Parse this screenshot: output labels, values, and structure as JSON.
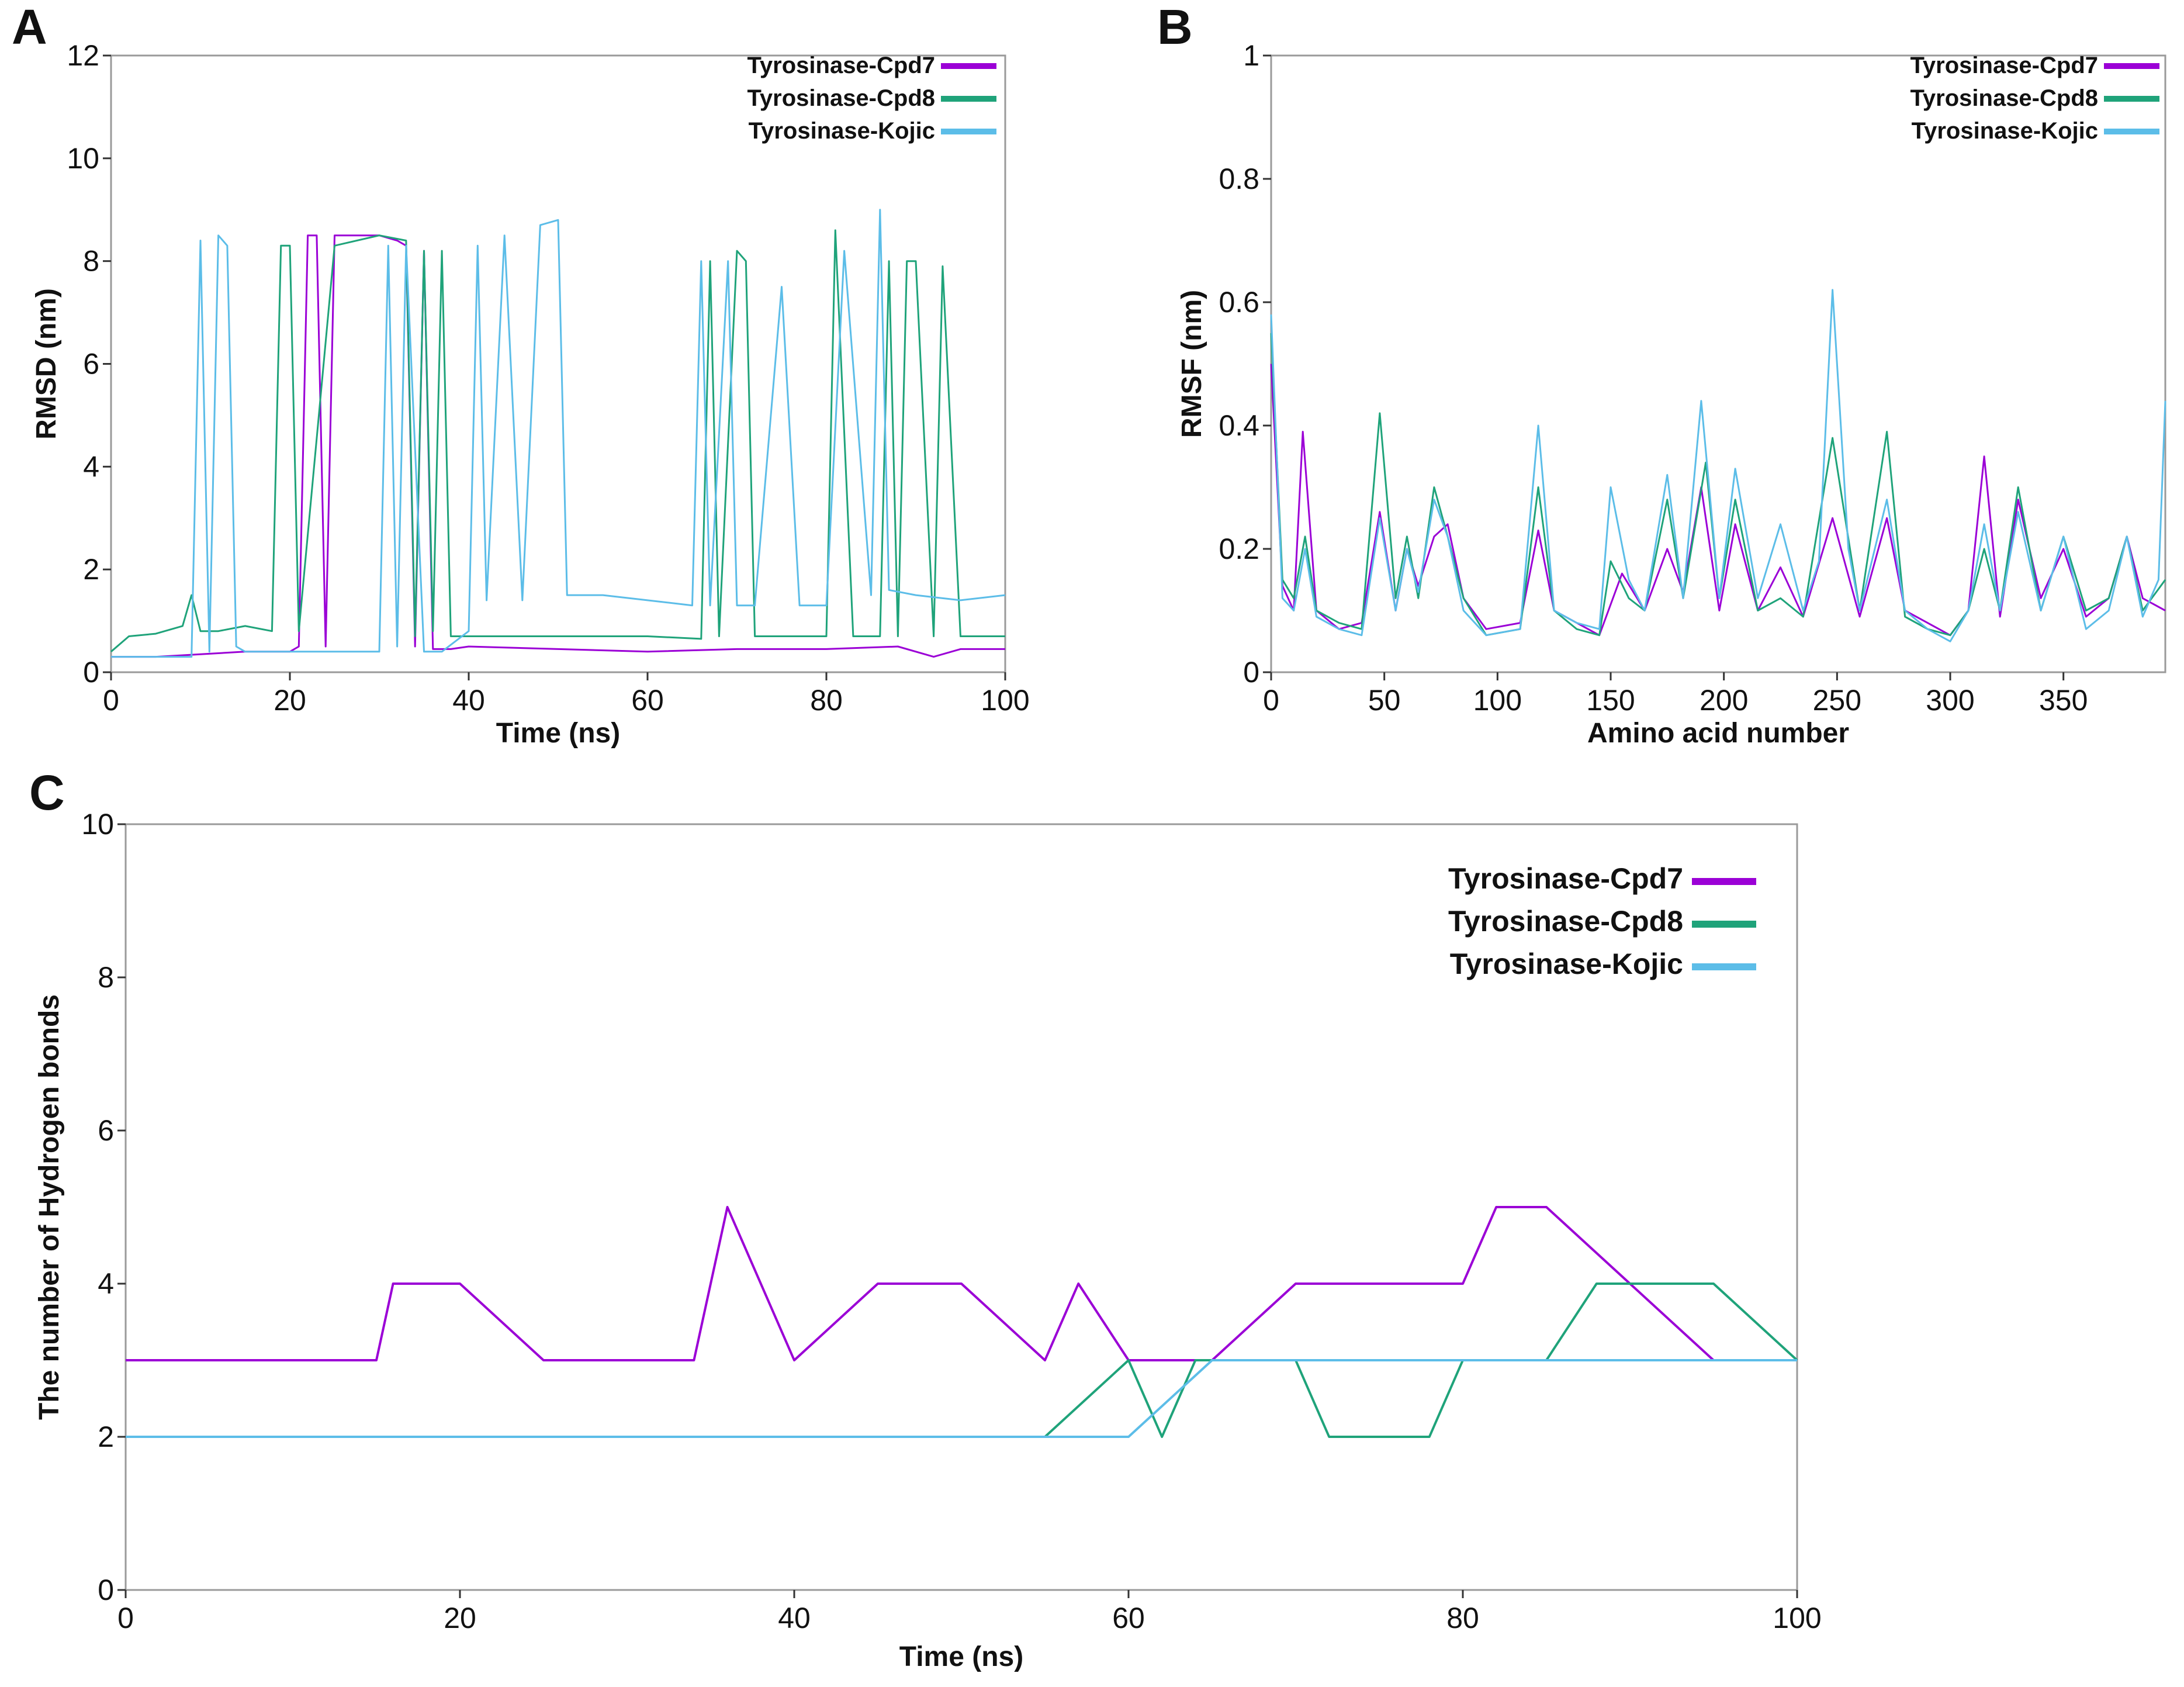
{
  "colors": {
    "cpd7": "#9b00d6",
    "cpd8": "#1fa37a",
    "kojic": "#5cbde8",
    "axis": "#9a9a9a",
    "text": "#111111"
  },
  "chart_data": [
    {
      "panel": "A",
      "type": "line",
      "xlabel": "Time (ns)",
      "ylabel": "RMSD (nm)",
      "xlim": [
        0,
        100
      ],
      "ylim": [
        0,
        12
      ],
      "xticks": [
        0,
        20,
        40,
        60,
        80,
        100
      ],
      "yticks": [
        0,
        2,
        4,
        6,
        8,
        10,
        12
      ],
      "legend_position": "top-right",
      "series": [
        {
          "name": "Tyrosinase-Cpd7",
          "x": [
            0,
            5,
            10,
            15,
            20,
            21,
            22,
            23,
            24,
            25,
            26,
            30,
            32,
            33,
            34,
            35,
            36,
            38,
            40,
            50,
            60,
            70,
            80,
            88,
            92,
            95,
            100
          ],
          "values": [
            0.3,
            0.3,
            0.35,
            0.4,
            0.4,
            0.5,
            8.5,
            8.5,
            0.5,
            8.5,
            8.5,
            8.5,
            8.4,
            8.3,
            0.5,
            8.2,
            0.45,
            0.45,
            0.5,
            0.45,
            0.4,
            0.45,
            0.45,
            0.5,
            0.3,
            0.45,
            0.45
          ]
        },
        {
          "name": "Tyrosinase-Cpd8",
          "x": [
            0,
            2,
            5,
            8,
            9,
            10,
            12,
            15,
            18,
            19,
            20,
            21,
            25,
            30,
            33,
            34,
            35,
            36,
            37,
            38,
            40,
            50,
            60,
            66,
            67,
            68,
            70,
            71,
            72,
            75,
            80,
            81,
            83,
            86,
            87,
            88,
            89,
            90,
            92,
            93,
            95,
            100
          ],
          "values": [
            0.4,
            0.7,
            0.75,
            0.9,
            1.5,
            0.8,
            0.8,
            0.9,
            0.8,
            8.3,
            8.3,
            0.8,
            8.3,
            8.5,
            8.4,
            0.7,
            8.2,
            0.8,
            8.2,
            0.7,
            0.7,
            0.7,
            0.7,
            0.65,
            8.0,
            0.7,
            8.2,
            8.0,
            0.7,
            0.7,
            0.7,
            8.6,
            0.7,
            0.7,
            8.0,
            0.7,
            8.0,
            8.0,
            0.7,
            7.9,
            0.7,
            0.7
          ]
        },
        {
          "name": "Tyrosinase-Kojic",
          "x": [
            0,
            5,
            9,
            10,
            11,
            12,
            13,
            14,
            15,
            18,
            20,
            25,
            30,
            31,
            32,
            33,
            35,
            37,
            40,
            41,
            42,
            44,
            46,
            48,
            50,
            51,
            55,
            60,
            65,
            66,
            67,
            69,
            70,
            72,
            75,
            77,
            80,
            82,
            85,
            86,
            87,
            90,
            95,
            100
          ],
          "values": [
            0.3,
            0.3,
            0.3,
            8.4,
            0.4,
            8.5,
            8.3,
            0.5,
            0.4,
            0.4,
            0.4,
            0.4,
            0.4,
            8.3,
            0.5,
            8.3,
            0.4,
            0.4,
            0.8,
            8.3,
            1.4,
            8.5,
            1.4,
            8.7,
            8.8,
            1.5,
            1.5,
            1.4,
            1.3,
            8.0,
            1.3,
            8.0,
            1.3,
            1.3,
            7.5,
            1.3,
            1.3,
            8.2,
            1.5,
            9.0,
            1.6,
            1.5,
            1.4,
            1.5
          ]
        }
      ],
      "legend": [
        "Tyrosinase-Cpd7",
        "Tyrosinase-Cpd8",
        "Tyrosinase-Kojic"
      ]
    },
    {
      "panel": "B",
      "type": "line",
      "xlabel": "Amino acid number",
      "ylabel": "RMSF (nm)",
      "xlim": [
        0,
        395
      ],
      "ylim": [
        0,
        1
      ],
      "xticks": [
        0,
        50,
        100,
        150,
        200,
        250,
        300,
        350
      ],
      "yticks": [
        0,
        0.2,
        0.4,
        0.6,
        0.8,
        1
      ],
      "legend_position": "top-right",
      "series": [
        {
          "name": "Tyrosinase-Cpd7",
          "x": [
            0,
            5,
            10,
            14,
            20,
            30,
            40,
            48,
            55,
            60,
            65,
            72,
            78,
            85,
            95,
            110,
            118,
            125,
            135,
            145,
            155,
            165,
            175,
            182,
            190,
            198,
            205,
            215,
            225,
            235,
            248,
            260,
            272,
            280,
            290,
            300,
            308,
            315,
            322,
            330,
            340,
            350,
            360,
            370,
            378,
            385,
            395
          ],
          "values": [
            0.5,
            0.14,
            0.1,
            0.39,
            0.1,
            0.07,
            0.08,
            0.26,
            0.1,
            0.2,
            0.14,
            0.22,
            0.24,
            0.12,
            0.07,
            0.08,
            0.23,
            0.1,
            0.08,
            0.06,
            0.16,
            0.1,
            0.2,
            0.13,
            0.3,
            0.1,
            0.24,
            0.1,
            0.17,
            0.09,
            0.25,
            0.09,
            0.25,
            0.1,
            0.08,
            0.06,
            0.1,
            0.35,
            0.09,
            0.28,
            0.12,
            0.2,
            0.09,
            0.12,
            0.22,
            0.12,
            0.1
          ]
        },
        {
          "name": "Tyrosinase-Cpd8",
          "x": [
            0,
            5,
            10,
            15,
            20,
            30,
            40,
            48,
            55,
            60,
            65,
            72,
            78,
            85,
            95,
            110,
            118,
            125,
            135,
            145,
            150,
            158,
            165,
            175,
            182,
            192,
            198,
            205,
            215,
            225,
            235,
            248,
            260,
            272,
            280,
            290,
            300,
            308,
            315,
            322,
            330,
            340,
            350,
            360,
            370,
            378,
            385,
            395
          ],
          "values": [
            0.55,
            0.15,
            0.12,
            0.22,
            0.1,
            0.08,
            0.07,
            0.42,
            0.12,
            0.22,
            0.12,
            0.3,
            0.22,
            0.12,
            0.06,
            0.07,
            0.3,
            0.1,
            0.07,
            0.06,
            0.18,
            0.12,
            0.1,
            0.28,
            0.12,
            0.34,
            0.12,
            0.28,
            0.1,
            0.12,
            0.09,
            0.38,
            0.1,
            0.39,
            0.09,
            0.07,
            0.06,
            0.1,
            0.2,
            0.1,
            0.3,
            0.1,
            0.22,
            0.1,
            0.12,
            0.22,
            0.1,
            0.15
          ]
        },
        {
          "name": "Tyrosinase-Kojic",
          "x": [
            0,
            5,
            10,
            15,
            20,
            30,
            40,
            48,
            55,
            60,
            65,
            72,
            78,
            85,
            95,
            110,
            118,
            125,
            135,
            145,
            150,
            158,
            165,
            175,
            182,
            190,
            198,
            205,
            215,
            225,
            235,
            242,
            248,
            255,
            260,
            272,
            280,
            290,
            300,
            308,
            315,
            322,
            330,
            340,
            350,
            360,
            370,
            378,
            385,
            392,
            395
          ],
          "values": [
            0.58,
            0.12,
            0.1,
            0.2,
            0.09,
            0.07,
            0.06,
            0.25,
            0.1,
            0.2,
            0.13,
            0.28,
            0.22,
            0.1,
            0.06,
            0.07,
            0.4,
            0.1,
            0.08,
            0.07,
            0.3,
            0.15,
            0.1,
            0.32,
            0.12,
            0.44,
            0.12,
            0.33,
            0.12,
            0.24,
            0.1,
            0.18,
            0.62,
            0.2,
            0.1,
            0.28,
            0.1,
            0.07,
            0.05,
            0.1,
            0.24,
            0.1,
            0.26,
            0.1,
            0.22,
            0.07,
            0.1,
            0.22,
            0.09,
            0.15,
            0.44
          ]
        }
      ],
      "legend": [
        "Tyrosinase-Cpd7",
        "Tyrosinase-Cpd8",
        "Tyrosinase-Kojic"
      ]
    },
    {
      "panel": "C",
      "type": "line",
      "xlabel": "Time (ns)",
      "ylabel": "The number of Hydrogen bonds",
      "xlim": [
        0,
        100
      ],
      "ylim": [
        0,
        10
      ],
      "xticks": [
        0,
        20,
        40,
        60,
        80,
        100
      ],
      "yticks": [
        0,
        2,
        4,
        6,
        8,
        10
      ],
      "legend_position": "top-right",
      "series": [
        {
          "name": "Tyrosinase-Cpd7",
          "x": [
            0,
            5,
            10,
            15,
            16,
            20,
            25,
            30,
            34,
            36,
            38,
            40,
            45,
            50,
            55,
            57,
            60,
            65,
            70,
            75,
            80,
            82,
            85,
            90,
            95,
            100
          ],
          "values": [
            3,
            3,
            3,
            3,
            4,
            4,
            3,
            3,
            3,
            5,
            4,
            3,
            4,
            4,
            3,
            4,
            3,
            3,
            4,
            4,
            4,
            5,
            5,
            4,
            3,
            3
          ]
        },
        {
          "name": "Tyrosinase-Cpd8",
          "x": [
            0,
            5,
            10,
            20,
            30,
            40,
            50,
            55,
            60,
            62,
            64,
            70,
            72,
            75,
            78,
            80,
            85,
            88,
            90,
            92,
            95,
            100
          ],
          "values": [
            2,
            2,
            2,
            2,
            2,
            2,
            2,
            2,
            3,
            2,
            3,
            3,
            2,
            2,
            2,
            3,
            3,
            4,
            4,
            4,
            4,
            3
          ]
        },
        {
          "name": "Tyrosinase-Kojic",
          "x": [
            0,
            5,
            10,
            20,
            25,
            30,
            40,
            45,
            50,
            55,
            60,
            65,
            70,
            75,
            80,
            85,
            90,
            95,
            100
          ],
          "values": [
            2,
            2,
            2,
            2,
            2,
            2,
            2,
            2,
            2,
            2,
            2,
            3,
            3,
            3,
            3,
            3,
            3,
            3,
            3
          ]
        }
      ],
      "legend": [
        "Tyrosinase-Cpd7",
        "Tyrosinase-Cpd8",
        "Tyrosinase-Kojic"
      ]
    }
  ]
}
